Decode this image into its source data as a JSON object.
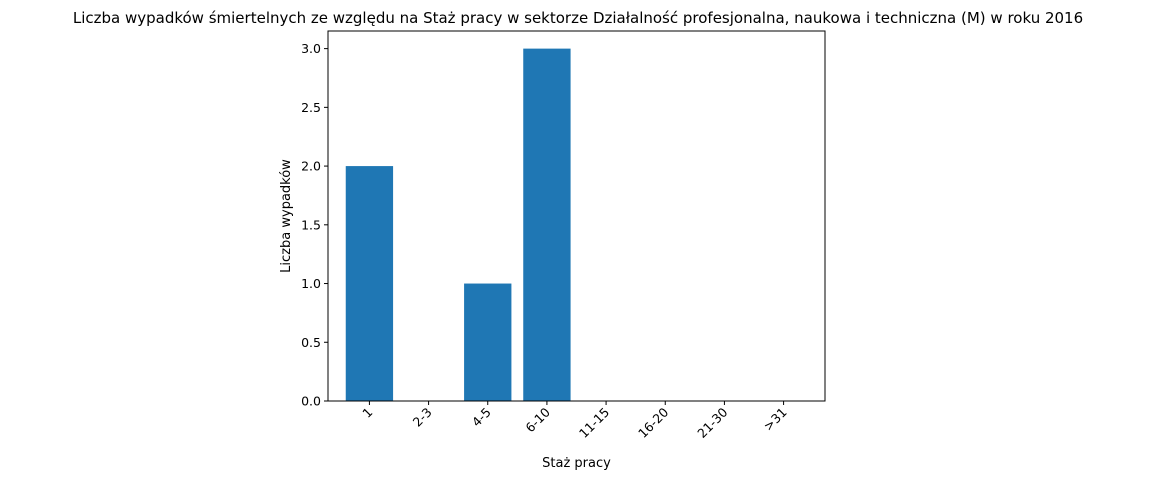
{
  "chart_data": {
    "type": "bar",
    "title": "Liczba wypadków śmiertelnych ze względu na Staż pracy w sektorze Działalność profesjonalna, naukowa i techniczna  (M)  w roku 2016",
    "xlabel": "Staż pracy",
    "ylabel": "Liczba wypadków",
    "categories": [
      "1",
      "2-3",
      "4-5",
      "6-10",
      "11-15",
      "16-20",
      "21-30",
      ">31"
    ],
    "values": [
      2,
      0,
      1,
      3,
      0,
      0,
      0,
      0
    ],
    "ylim": [
      0,
      3.15
    ],
    "yticks": [
      "0.0",
      "0.5",
      "1.0",
      "1.5",
      "2.0",
      "2.5",
      "3.0"
    ],
    "ytick_values": [
      0,
      0.5,
      1.0,
      1.5,
      2.0,
      2.5,
      3.0
    ],
    "bar_color": "#1f77b4",
    "grid": false,
    "legend": "none"
  }
}
